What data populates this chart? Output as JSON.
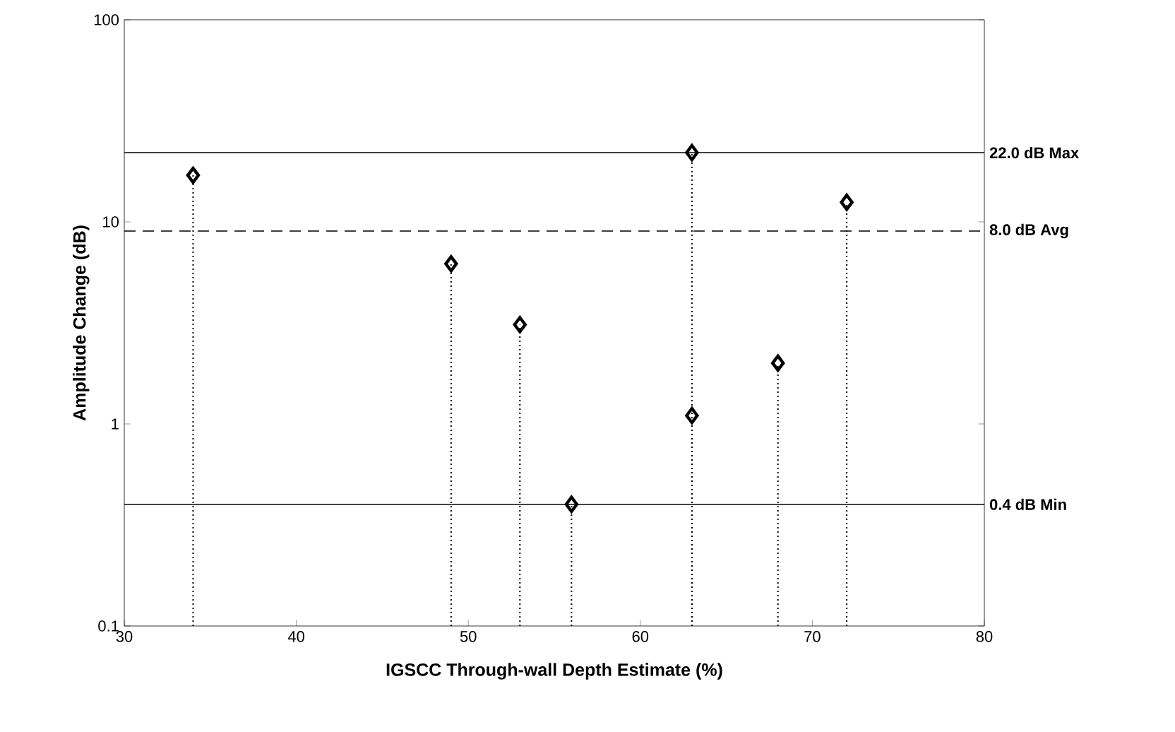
{
  "chart_data": {
    "type": "lollipop",
    "xlabel": "IGSCC Through-wall Depth Estimate (%)",
    "ylabel": "Amplitude Change (dB)",
    "x": [
      34,
      49,
      53,
      56,
      63,
      63,
      68,
      72
    ],
    "values": [
      17,
      6.2,
      3.1,
      0.4,
      22,
      1.1,
      2.0,
      12.5
    ],
    "color": "#000000",
    "marker": "diamond",
    "line_style": "dotted",
    "log": "y",
    "grid": false,
    "xlim": [
      30,
      80
    ],
    "xticks": [
      30,
      40,
      50,
      60,
      70,
      80
    ],
    "ylim": [
      0.1,
      100
    ],
    "yticks": [
      0.1,
      1,
      10,
      100
    ],
    "ref_lines": [
      {
        "axis": "y",
        "value": 22,
        "label": "22.0 dB Max",
        "line_style": "solid",
        "color": "#000000"
      },
      {
        "axis": "y",
        "value": 9,
        "label": "8.0 dB Avg",
        "line_style": "dashed",
        "color": "#000000"
      },
      {
        "axis": "y",
        "value": 0.4,
        "label": "0.4 dB Min",
        "line_style": "solid",
        "color": "#000000"
      }
    ]
  }
}
